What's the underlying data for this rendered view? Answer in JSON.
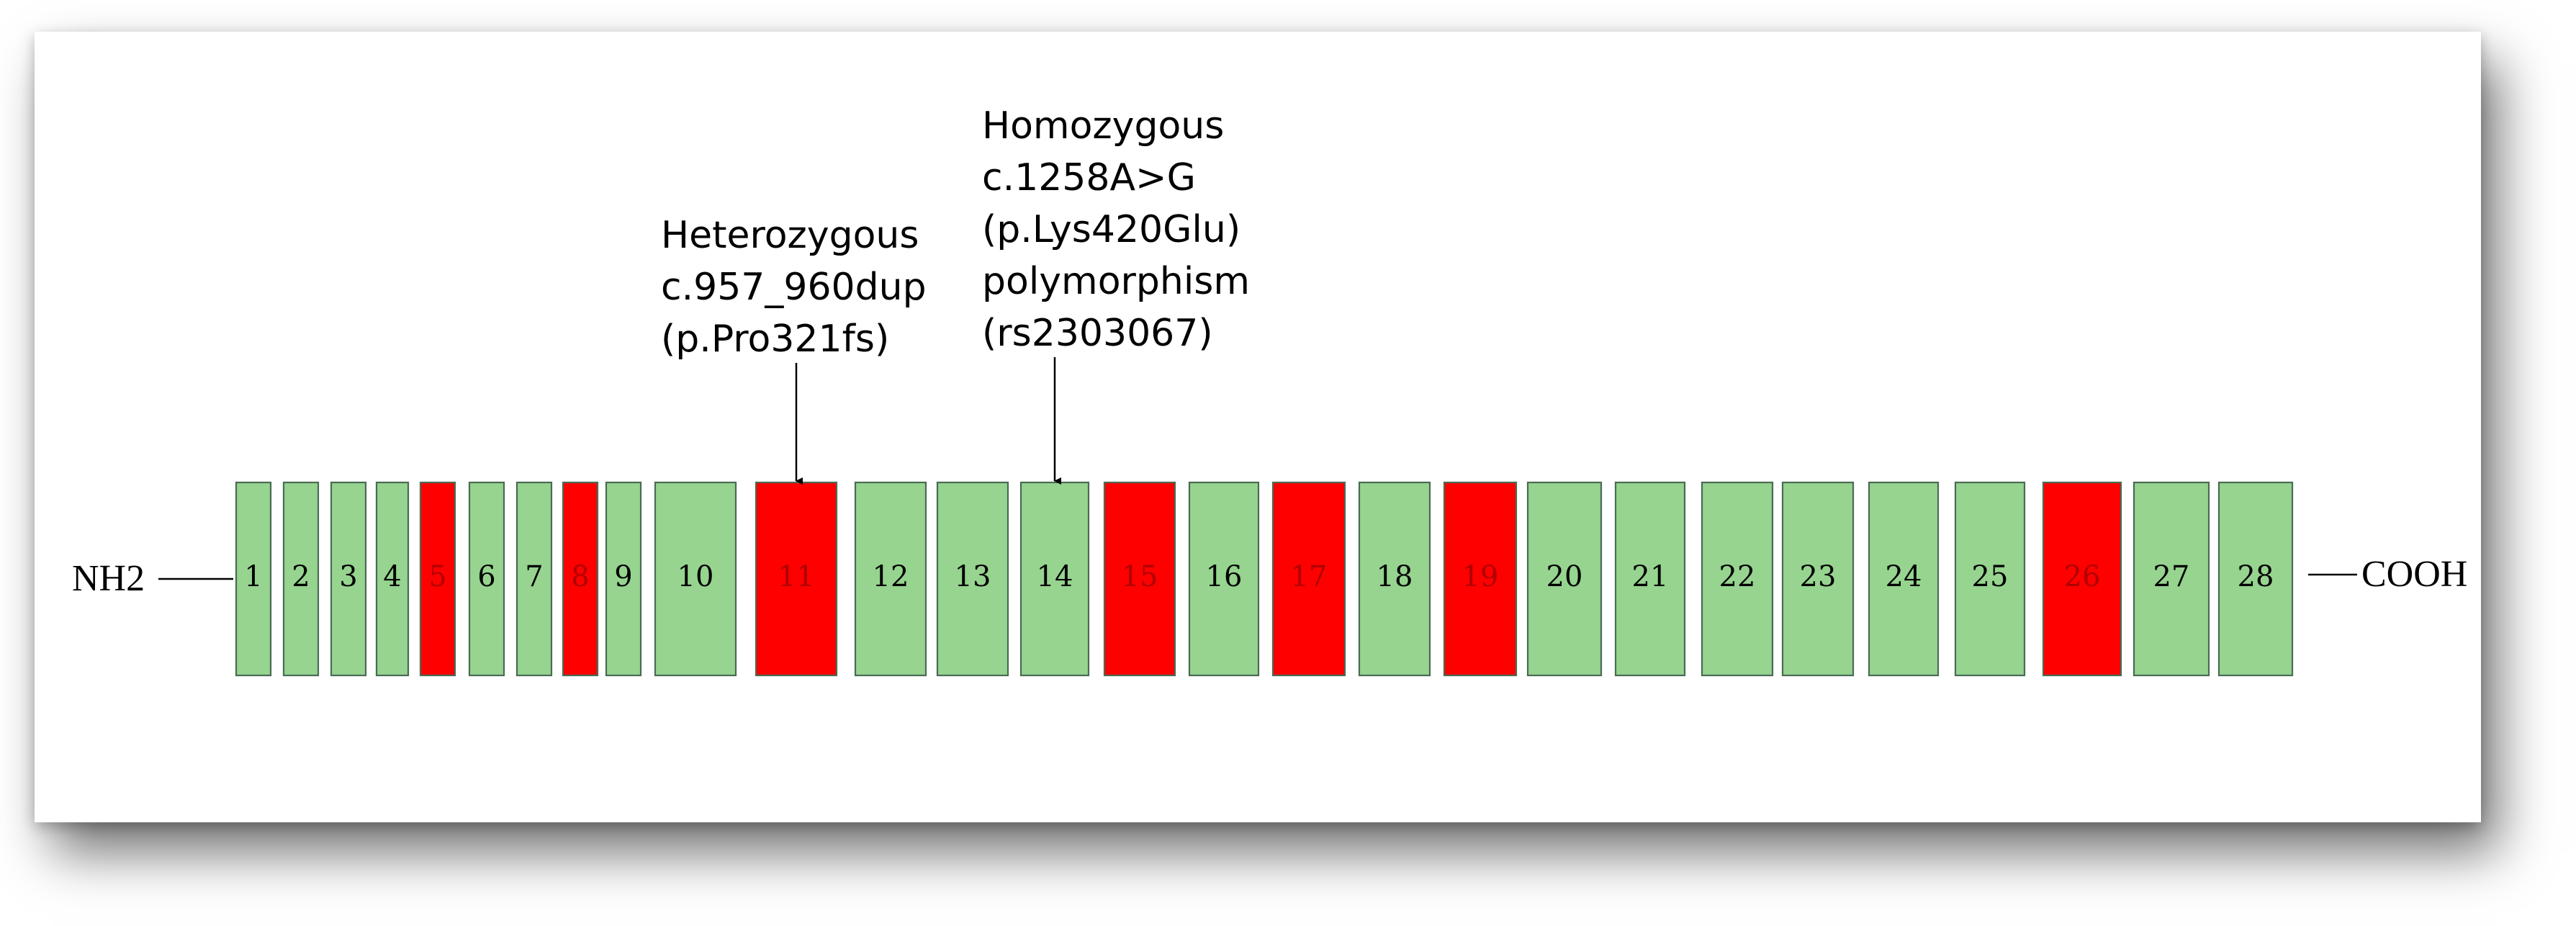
{
  "terminals": {
    "n": "NH2",
    "c": "COOH"
  },
  "colors": {
    "normal_fill": "#96d48f",
    "normal_text": "#000000",
    "variant_fill": "#ff0000",
    "variant_text": "#b00000",
    "stroke": "#4a6b55"
  },
  "exons": [
    {
      "label": "1",
      "highlight": false
    },
    {
      "label": "2",
      "highlight": false
    },
    {
      "label": "3",
      "highlight": false
    },
    {
      "label": "4",
      "highlight": false
    },
    {
      "label": "5",
      "highlight": true
    },
    {
      "label": "6",
      "highlight": false
    },
    {
      "label": "7",
      "highlight": false
    },
    {
      "label": "8",
      "highlight": true
    },
    {
      "label": "9",
      "highlight": false
    },
    {
      "label": "10",
      "highlight": false
    },
    {
      "label": "11",
      "highlight": true
    },
    {
      "label": "12",
      "highlight": false
    },
    {
      "label": "13",
      "highlight": false
    },
    {
      "label": "14",
      "highlight": false
    },
    {
      "label": "15",
      "highlight": true
    },
    {
      "label": "16",
      "highlight": false
    },
    {
      "label": "17",
      "highlight": true
    },
    {
      "label": "18",
      "highlight": false
    },
    {
      "label": "19",
      "highlight": true
    },
    {
      "label": "20",
      "highlight": false
    },
    {
      "label": "21",
      "highlight": false
    },
    {
      "label": "22",
      "highlight": false
    },
    {
      "label": "23",
      "highlight": false
    },
    {
      "label": "24",
      "highlight": false
    },
    {
      "label": "25",
      "highlight": false
    },
    {
      "label": "26",
      "highlight": true
    },
    {
      "label": "27",
      "highlight": false
    },
    {
      "label": "28",
      "highlight": false
    }
  ],
  "annotations": [
    {
      "target_exon": "11",
      "lines": [
        "Heterozygous",
        "c.957_960dup",
        "(p.Pro321fs)"
      ]
    },
    {
      "target_exon": "14",
      "lines": [
        "Homozygous",
        "c.1258A>G",
        "(p.Lys420Glu)",
        "polymorphism",
        "(rs2303067)"
      ]
    }
  ]
}
